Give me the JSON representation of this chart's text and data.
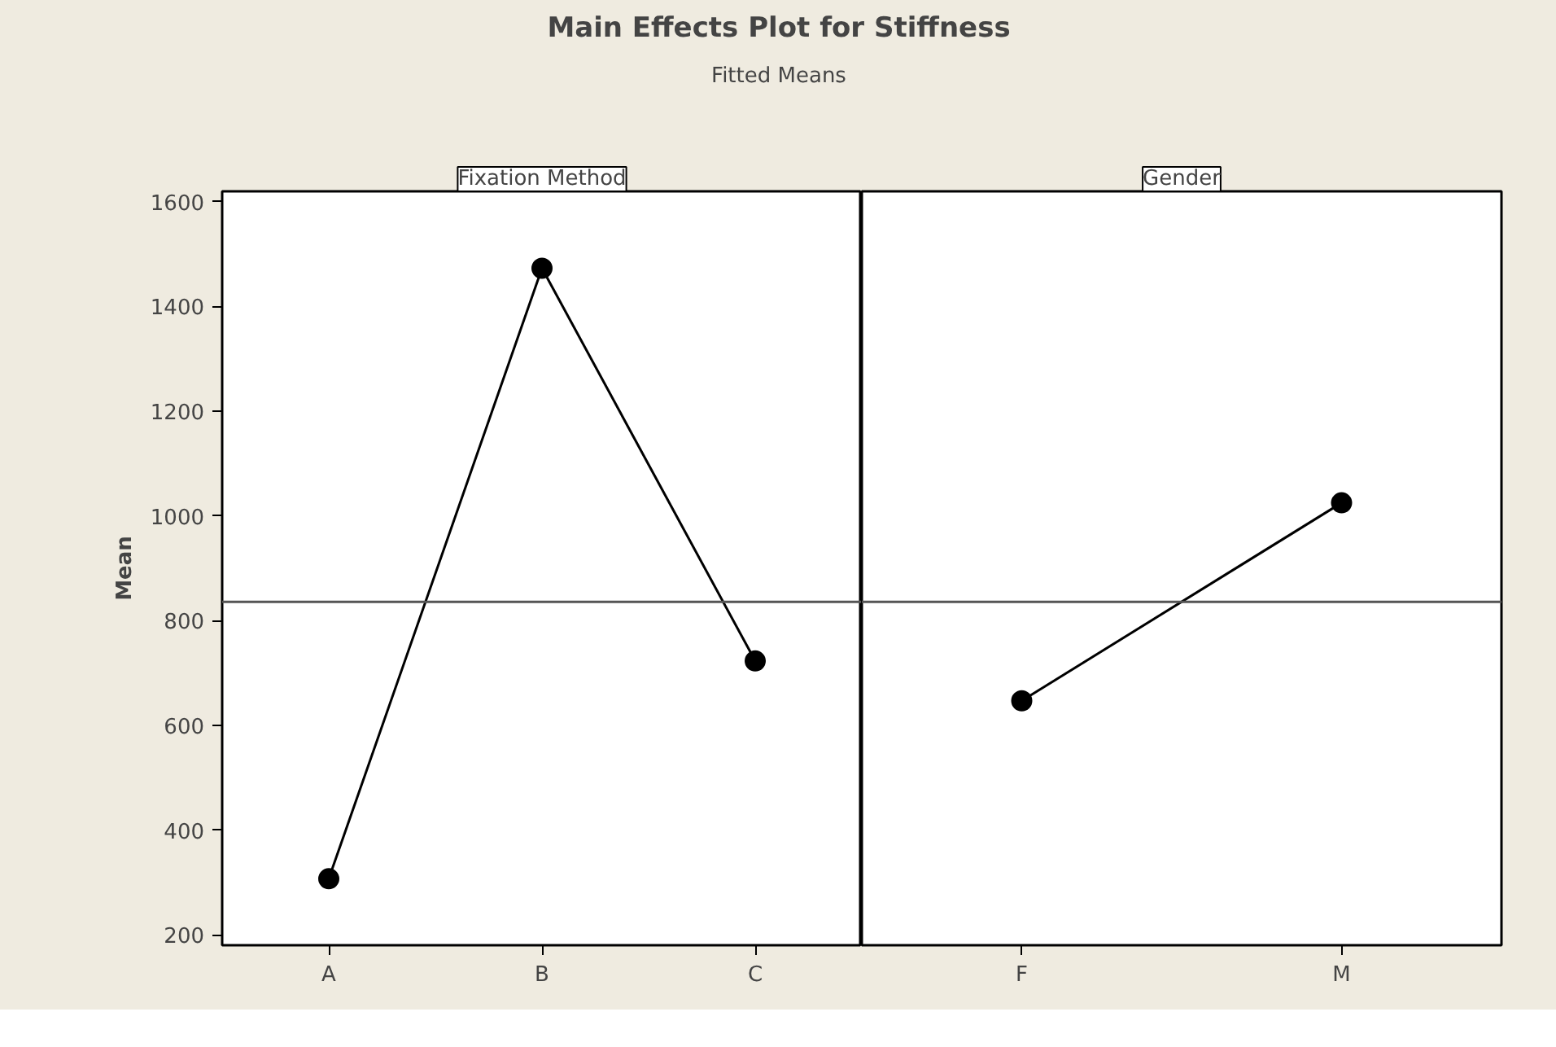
{
  "chart_data": [
    {
      "type": "other",
      "title": "Main Effects Plot for Stiffness",
      "subtitle": "Fitted Means"
    },
    {
      "type": "line",
      "title": "Fixation Method",
      "ylabel": "Mean",
      "categories": [
        "A",
        "B",
        "C"
      ],
      "series": [
        {
          "color": "#000000",
          "values": [
            307,
            1473,
            723
          ]
        }
      ],
      "ylim": [
        180,
        1620
      ],
      "yticks": [
        200,
        400,
        600,
        800,
        1000,
        1200,
        1400,
        1600
      ],
      "marker": "circle",
      "ref_lines": [
        {
          "axis": "y",
          "value": 836,
          "color": "#555555"
        }
      ]
    },
    {
      "type": "line",
      "title": "Gender",
      "categories": [
        "F",
        "M"
      ],
      "series": [
        {
          "color": "#000000",
          "values": [
            647,
            1025
          ]
        }
      ],
      "ylim": [
        180,
        1620
      ],
      "yticks": [
        200,
        400,
        600,
        800,
        1000,
        1200,
        1400,
        1600
      ],
      "marker": "circle",
      "tick_labels": "x",
      "ref_lines": [
        {
          "axis": "y",
          "value": 836,
          "color": "#555555"
        }
      ]
    }
  ]
}
